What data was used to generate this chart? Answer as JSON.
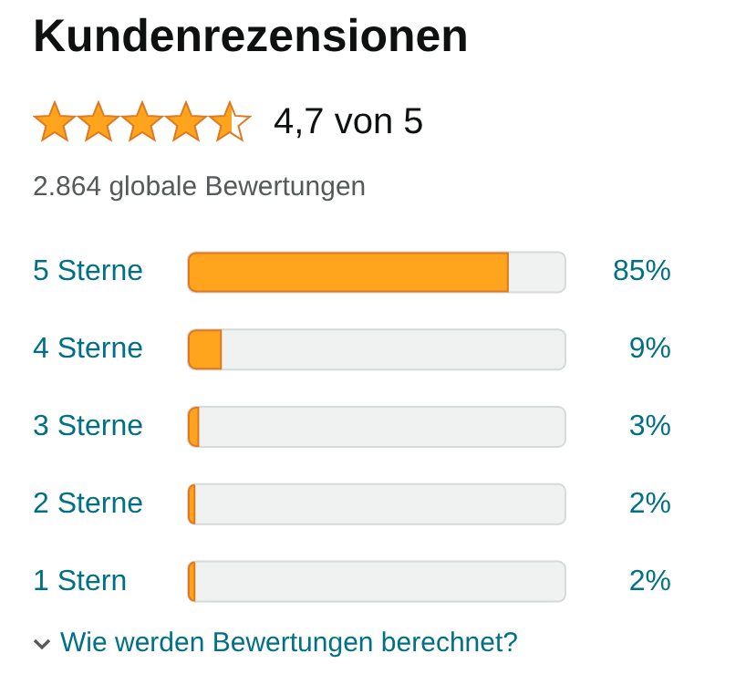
{
  "chart_data": {
    "type": "bar",
    "orientation": "horizontal",
    "title": "Kundenrezensionen",
    "subtitle": "4,7 von 5",
    "categories": [
      "5 Sterne",
      "4 Sterne",
      "3 Sterne",
      "2 Sterne",
      "1 Stern"
    ],
    "values": [
      85,
      9,
      3,
      2,
      2
    ],
    "color": "#ffa41c",
    "value_labels": [
      "85%",
      "9%",
      "3%",
      "2%",
      "2%"
    ],
    "xlim": [
      0,
      100
    ],
    "tick_labels": "y",
    "grid": false,
    "annotations": [
      "2.864 globale Bewertungen",
      "Wie werden Bewertungen berechnet?"
    ]
  }
}
